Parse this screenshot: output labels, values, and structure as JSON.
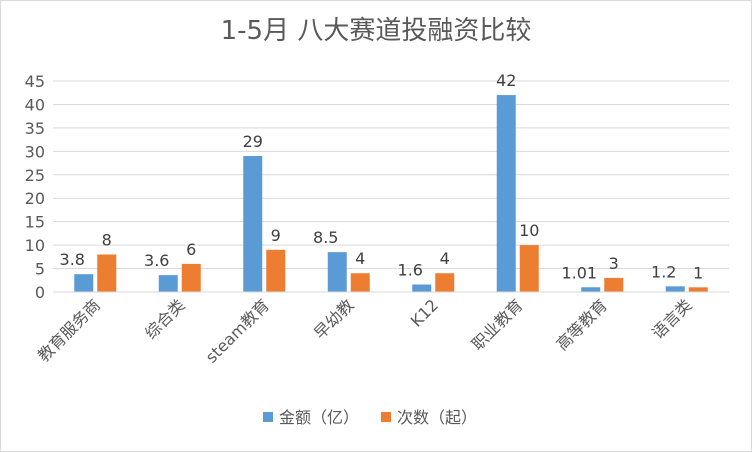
{
  "chart_data": {
    "type": "bar",
    "title": "1-5月 八大赛道投融资比较",
    "categories": [
      "教育服务商",
      "综合类",
      "steam教育",
      "早幼教",
      "K12",
      "职业教育",
      "高等教育",
      "语言类"
    ],
    "series": [
      {
        "name": "金额（亿）",
        "color": "#5b9bd5",
        "values": [
          3.8,
          3.6,
          29,
          8.5,
          1.6,
          42,
          1.01,
          1.2
        ],
        "labels": [
          "3.8",
          "3.6",
          "29",
          "8.5",
          "1.6",
          "42",
          "1.01",
          "1.2"
        ]
      },
      {
        "name": "次数（起）",
        "color": "#ed7d31",
        "values": [
          8,
          6,
          9,
          4,
          4,
          10,
          3,
          1
        ],
        "labels": [
          "8",
          "6",
          "9",
          "4",
          "4",
          "10",
          "3",
          "1"
        ]
      }
    ],
    "ylim": [
      0,
      45
    ],
    "yticks": [
      0,
      5,
      10,
      15,
      20,
      25,
      30,
      35,
      40,
      45
    ],
    "grid": true,
    "legend": "bottom"
  }
}
